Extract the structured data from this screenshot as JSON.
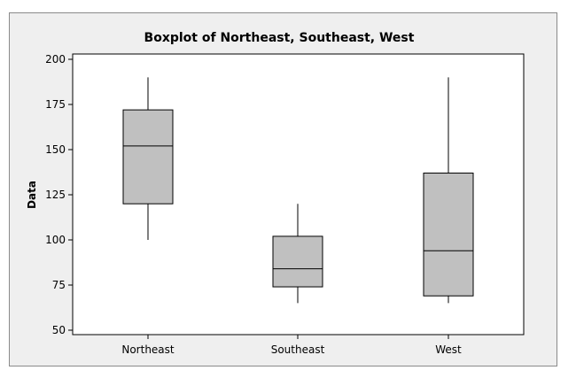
{
  "chart_data": {
    "type": "boxplot",
    "title": "Boxplot of Northeast, Southeast, West",
    "xlabel": "",
    "ylabel": "Data",
    "ylim": [
      50,
      200
    ],
    "yticks": [
      50,
      75,
      100,
      125,
      150,
      175,
      200
    ],
    "categories": [
      "Northeast",
      "Southeast",
      "West"
    ],
    "boxes": [
      {
        "category": "Northeast",
        "min": 100,
        "q1": 120,
        "median": 152,
        "q3": 172,
        "max": 190
      },
      {
        "category": "Southeast",
        "min": 65,
        "q1": 74,
        "median": 84,
        "q3": 102,
        "max": 120
      },
      {
        "category": "West",
        "min": 65,
        "q1": 69,
        "median": 94,
        "q3": 137,
        "max": 190
      }
    ],
    "grid": false,
    "legend": "none",
    "colors": {
      "box_fill": "#c0c0c0",
      "plot_bg": "#ffffff",
      "figure_bg": "#efefef",
      "line": "#000000"
    }
  }
}
